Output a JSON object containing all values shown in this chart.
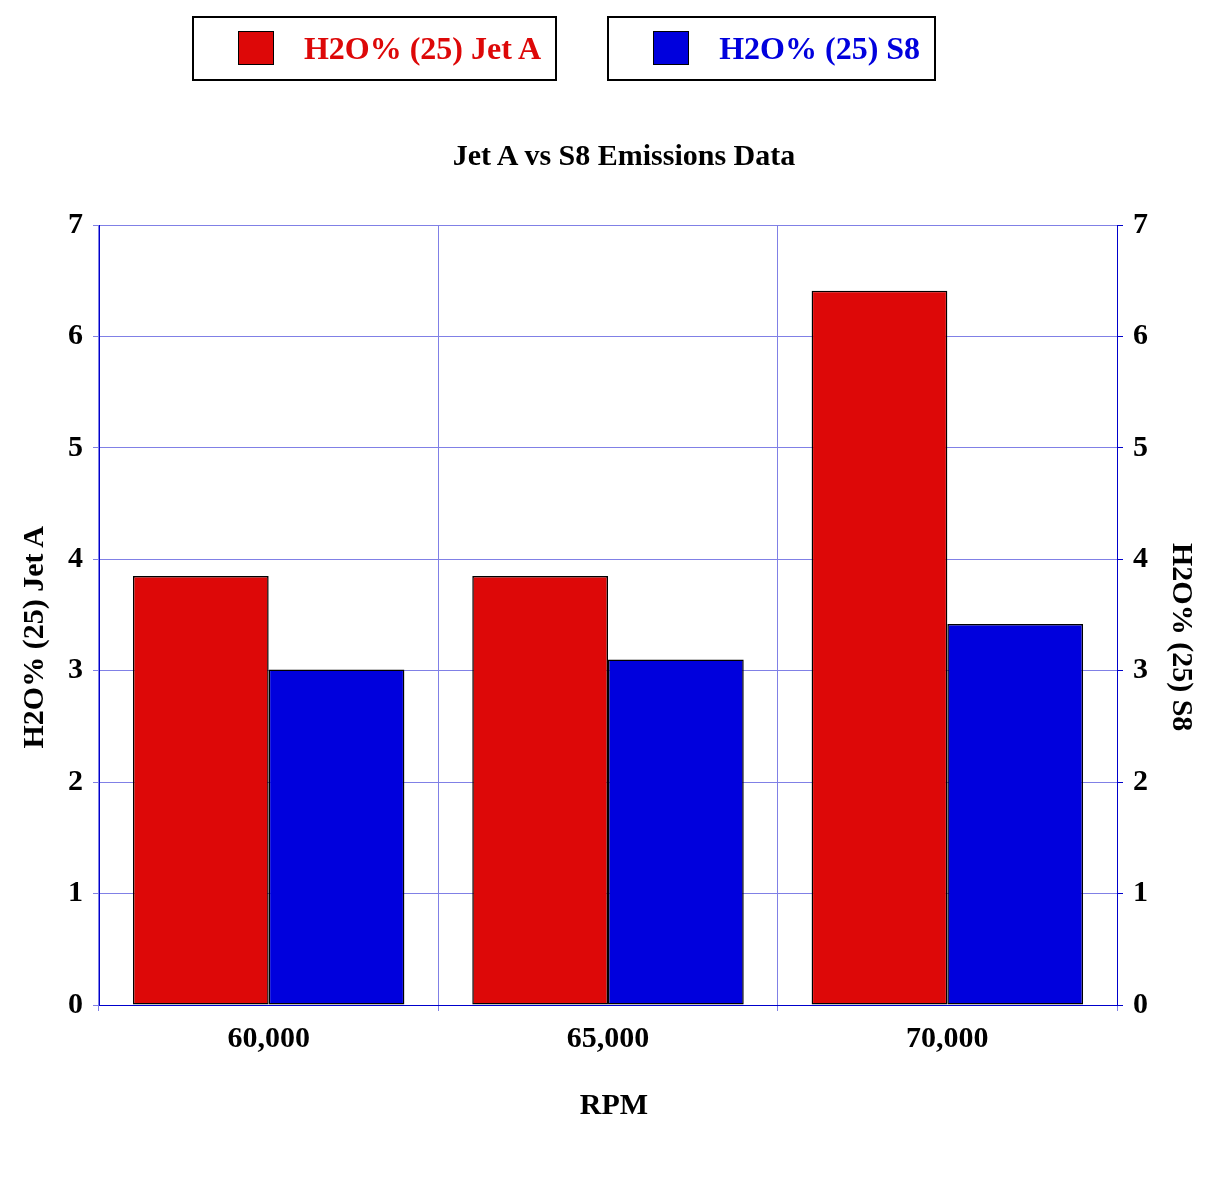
{
  "chart_data": {
    "type": "bar",
    "title": "Jet A  vs S8 Emissions Data",
    "xlabel": "RPM",
    "ylabel": "H2O% (25) Jet A",
    "y2label": "H2O% (25) S8",
    "categories": [
      "60,000",
      "65,000",
      "70,000"
    ],
    "series": [
      {
        "name": "H2O% (25) Jet A",
        "color": "#dd0808",
        "values": [
          3.85,
          3.85,
          6.41
        ]
      },
      {
        "name": "H2O% (25) S8",
        "color": "#0000dd",
        "values": [
          3.01,
          3.1,
          3.42
        ],
        "axis": "y2"
      }
    ],
    "ylim": [
      0,
      7
    ],
    "yticks": [
      0,
      1,
      2,
      3,
      4,
      5,
      6,
      7
    ],
    "y2lim": [
      0,
      7
    ],
    "y2ticks": [
      0,
      1,
      2,
      3,
      4,
      5,
      6,
      7
    ],
    "grid": true,
    "legend": "top"
  }
}
